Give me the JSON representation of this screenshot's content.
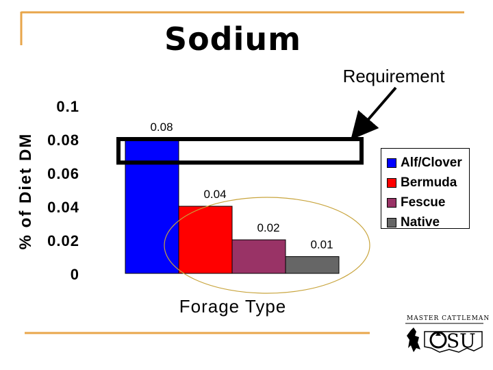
{
  "slide": {
    "title": "Sodium",
    "annotation": "Requirement",
    "logo_text": "Master Cattleman",
    "logo_mark": "OSU"
  },
  "colors": {
    "accent_line": "#E8A64A",
    "ellipse": "#C8A43C",
    "requirement_box": "#000000"
  },
  "chart_data": {
    "type": "bar",
    "title": "",
    "xlabel": "Forage Type",
    "ylabel": "% of Diet DM",
    "categories": [
      "Alf/Clover",
      "Bermuda",
      "Fescue",
      "Native"
    ],
    "values": [
      0.08,
      0.04,
      0.02,
      0.01
    ],
    "value_labels": [
      "0.08",
      "0.04",
      "0.02",
      "0.01"
    ],
    "bar_colors": [
      "#0000FF",
      "#FF0000",
      "#993366",
      "#666666"
    ],
    "ylim": [
      0,
      0.1
    ],
    "yticks": [
      "0",
      "0.02",
      "0.04",
      "0.06",
      "0.08",
      "0.1"
    ],
    "requirement_range": [
      0.066,
      0.08
    ],
    "grid": false,
    "legend": {
      "position": "right",
      "entries": [
        "Alf/Clover",
        "Bermuda",
        "Fescue",
        "Native"
      ]
    }
  }
}
